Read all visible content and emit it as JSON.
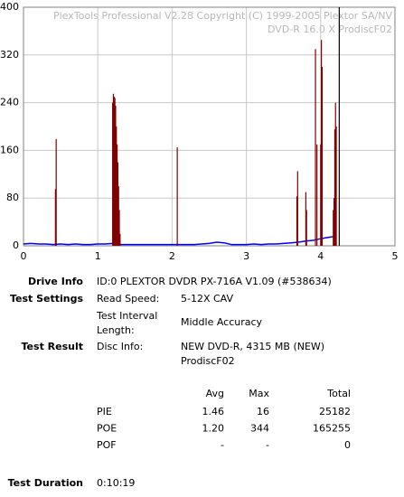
{
  "chart_data": {
    "type": "spikes",
    "watermark": [
      "PlexTools Professional V2.28 Copyright (C) 1999-2005 Plextor SA/NV",
      "DVD-R    16.0 X    ProdiscF02"
    ],
    "xlim": [
      0,
      5
    ],
    "xticks": [
      0,
      1,
      2,
      3,
      4,
      5
    ],
    "ylim": [
      0,
      400
    ],
    "yticks": [
      0,
      80,
      160,
      240,
      320,
      400
    ],
    "grid": true,
    "series": [
      {
        "kind": "line",
        "color": "#0000ff",
        "x": [
          0,
          0.1,
          0.2,
          0.3,
          0.4,
          0.5,
          0.6,
          0.7,
          0.8,
          0.9,
          1.0,
          1.1,
          1.2,
          1.3,
          1.4,
          1.5,
          1.6,
          1.7,
          1.8,
          1.9,
          2.0,
          2.1,
          2.2,
          2.3,
          2.4,
          2.5,
          2.6,
          2.7,
          2.8,
          2.9,
          3.0,
          3.1,
          3.2,
          3.3,
          3.4,
          3.5,
          3.6,
          3.7,
          3.8,
          3.9,
          4.0,
          4.1,
          4.2
        ],
        "values": [
          3,
          4,
          3,
          3,
          2,
          3,
          2,
          3,
          2,
          2,
          3,
          3,
          4,
          2,
          2,
          2,
          2,
          2,
          2,
          2,
          2,
          2,
          2,
          2,
          3,
          4,
          6,
          5,
          2,
          2,
          2,
          3,
          2,
          3,
          3,
          4,
          5,
          6,
          8,
          9,
          12,
          14,
          16
        ]
      },
      {
        "kind": "spike",
        "color": "#800000",
        "x": [
          0.43,
          0.44,
          1.2,
          1.21,
          1.22,
          1.23,
          1.24,
          1.25,
          1.26,
          1.27,
          1.28,
          1.29,
          1.3,
          2.07,
          3.68,
          3.69,
          3.8,
          3.81,
          3.93,
          3.95,
          4.0,
          4.01,
          4.02,
          4.17,
          4.18,
          4.19,
          4.2,
          4.21
        ],
        "values": [
          95,
          179,
          240,
          255,
          250,
          248,
          235,
          200,
          170,
          140,
          100,
          60,
          20,
          165,
          83,
          125,
          90,
          60,
          330,
          170,
          170,
          345,
          300,
          60,
          80,
          195,
          240,
          200
        ]
      },
      {
        "kind": "spike",
        "color": "#000000",
        "x": [
          4.25
        ],
        "values": [
          400
        ]
      }
    ]
  },
  "info": {
    "drive": {
      "label": "Drive Info",
      "value": "ID:0 PLEXTOR DVDR PX-716A V1.09 (#538634)"
    },
    "settings": {
      "label": "Test Settings",
      "rows": [
        [
          "Read Speed:",
          "5-12X CAV"
        ],
        [
          "Test Interval",
          "Length:",
          "Middle Accuracy"
        ]
      ]
    },
    "result": {
      "label": "Test Result",
      "key": "Disc Info:",
      "lines": [
        "NEW DVD-R, 4315 MB (NEW)",
        "ProdiscF02"
      ]
    },
    "stats": {
      "header": [
        "Avg",
        "Max",
        "Total"
      ],
      "rows": [
        [
          "PIE",
          "1.46",
          "16",
          "25182"
        ],
        [
          "POE",
          "1.20",
          "344",
          "165255"
        ],
        [
          "POF",
          "-",
          "-",
          "0"
        ]
      ]
    },
    "duration": {
      "label": "Test Duration",
      "value": "0:10:19"
    }
  }
}
